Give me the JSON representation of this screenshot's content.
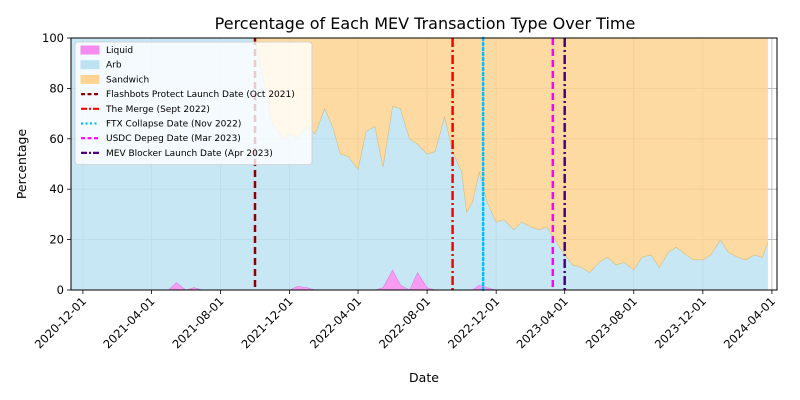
{
  "chart_data": {
    "type": "area",
    "title": "Percentage of Each MEV Transaction Type Over Time",
    "xlabel": "Date",
    "ylabel": "Percentage",
    "stacked": true,
    "ylim": [
      0,
      100
    ],
    "xlim": [
      "2020-11-10",
      "2024-04-10"
    ],
    "grid": true,
    "legend_position": "upper-left",
    "y_ticks": [
      0,
      20,
      40,
      60,
      80,
      100
    ],
    "x_ticks": [
      "2020-12-01",
      "2021-04-01",
      "2021-08-01",
      "2021-12-01",
      "2022-04-01",
      "2022-08-01",
      "2022-12-01",
      "2023-04-01",
      "2023-08-01",
      "2023-12-01",
      "2024-04-01"
    ],
    "dates": [
      "2020-11-10",
      "2020-12-01",
      "2021-01-01",
      "2021-02-01",
      "2021-03-01",
      "2021-04-01",
      "2021-05-01",
      "2021-05-15",
      "2021-06-01",
      "2021-06-15",
      "2021-07-01",
      "2021-07-15",
      "2021-08-01",
      "2021-09-01",
      "2021-10-01",
      "2021-11-01",
      "2021-11-20",
      "2021-12-01",
      "2021-12-15",
      "2022-01-01",
      "2022-01-15",
      "2022-02-01",
      "2022-02-15",
      "2022-03-01",
      "2022-03-15",
      "2022-04-01",
      "2022-04-15",
      "2022-05-01",
      "2022-05-15",
      "2022-06-01",
      "2022-06-15",
      "2022-07-01",
      "2022-07-15",
      "2022-08-01",
      "2022-08-15",
      "2022-09-01",
      "2022-09-15",
      "2022-10-01",
      "2022-10-10",
      "2022-10-20",
      "2022-11-01",
      "2022-11-15",
      "2022-12-01",
      "2022-12-15",
      "2023-01-01",
      "2023-01-15",
      "2023-02-01",
      "2023-02-15",
      "2023-03-01",
      "2023-03-15",
      "2023-04-01",
      "2023-04-15",
      "2023-05-01",
      "2023-05-15",
      "2023-06-01",
      "2023-06-15",
      "2023-07-01",
      "2023-07-15",
      "2023-08-01",
      "2023-08-15",
      "2023-09-01",
      "2023-09-15",
      "2023-10-01",
      "2023-10-15",
      "2023-11-01",
      "2023-11-15",
      "2023-12-01",
      "2023-12-15",
      "2024-01-01",
      "2024-01-15",
      "2024-02-01",
      "2024-02-15",
      "2024-03-01",
      "2024-03-15",
      "2024-03-25"
    ],
    "series": [
      {
        "name": "Liquid",
        "color": "#f48cf0",
        "values": [
          0,
          0,
          0,
          0,
          0,
          0,
          0,
          3,
          0,
          1,
          0,
          0,
          0,
          0,
          0,
          0,
          0,
          0,
          1.5,
          1,
          0,
          0,
          0,
          0,
          0,
          0,
          0,
          0,
          1,
          8,
          2,
          0,
          7,
          1,
          0,
          0,
          0,
          0,
          0,
          0,
          2,
          1,
          0,
          0,
          0,
          0,
          0,
          0,
          0,
          0,
          0,
          0,
          0,
          0,
          0,
          0,
          0,
          0,
          0,
          0,
          0,
          0,
          0,
          0,
          0,
          0,
          0,
          0,
          0,
          0,
          0,
          0,
          0,
          0,
          0
        ]
      },
      {
        "name": "Arb",
        "color": "#bde3f3",
        "values": [
          100,
          100,
          100,
          100,
          100,
          100,
          100,
          97,
          100,
          99,
          100,
          100,
          100,
          100,
          100,
          66,
          60,
          62,
          59,
          64,
          62,
          72,
          65,
          54,
          53,
          48,
          63,
          65,
          48,
          65,
          70,
          60,
          51,
          53,
          55,
          69,
          55,
          47,
          31,
          35,
          45,
          34,
          27,
          28,
          24,
          27,
          25,
          24,
          25,
          20,
          14,
          10,
          9,
          7,
          11,
          13,
          10,
          11,
          8,
          13,
          14,
          9,
          15,
          17,
          14,
          12,
          12,
          14,
          20,
          15,
          13,
          12,
          14,
          13,
          19
        ]
      },
      {
        "name": "Sandwich",
        "color": "#fdd491",
        "values": [
          0,
          0,
          0,
          0,
          0,
          0,
          0,
          0,
          0,
          0,
          0,
          0,
          0,
          0,
          0,
          34,
          40,
          38,
          39.5,
          35,
          38,
          28,
          35,
          46,
          47,
          52,
          37,
          35,
          51,
          27,
          28,
          40,
          42,
          46,
          45,
          31,
          45,
          53,
          69,
          65,
          53,
          65,
          73,
          72,
          76,
          73,
          75,
          76,
          75,
          80,
          86,
          90,
          91,
          93,
          89,
          87,
          90,
          89,
          92,
          87,
          86,
          91,
          85,
          83,
          86,
          88,
          88,
          86,
          80,
          85,
          87,
          88,
          86,
          87,
          81
        ]
      }
    ],
    "event_lines": [
      {
        "label": "Flashbots Protect Launch Date (Oct 2021)",
        "date": "2021-10-01",
        "color": "#8b0000",
        "style": "dashed"
      },
      {
        "label": "The Merge (Sept 2022)",
        "date": "2022-09-15",
        "color": "#ff0000",
        "style": "dashdot"
      },
      {
        "label": "FTX Collapse Date (Nov 2022)",
        "date": "2022-11-08",
        "color": "#00bfff",
        "style": "dotted"
      },
      {
        "label": "USDC Depeg Date (Mar 2023)",
        "date": "2023-03-11",
        "color": "#ff00ff",
        "style": "dashed"
      },
      {
        "label": "MEV Blocker Launch Date (Apr 2023)",
        "date": "2023-04-01",
        "color": "#4b0082",
        "style": "dashdot"
      }
    ]
  }
}
